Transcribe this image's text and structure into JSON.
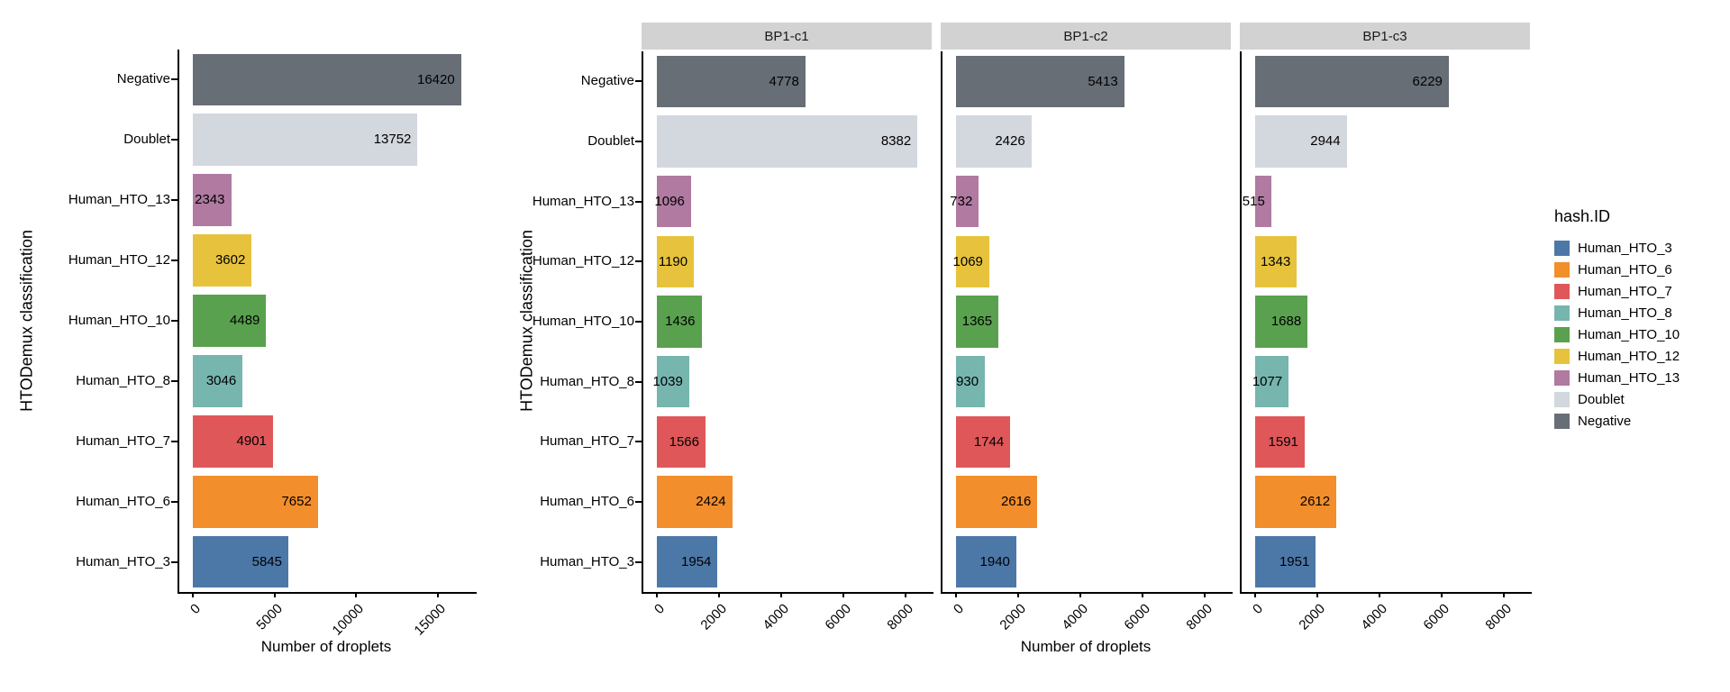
{
  "chart_data": [
    {
      "type": "bar",
      "orientation": "horizontal",
      "title": "",
      "ylabel": "HTODemux classification",
      "xlabel": "Number of droplets",
      "categories": [
        "Negative",
        "Doublet",
        "Human_HTO_13",
        "Human_HTO_12",
        "Human_HTO_10",
        "Human_HTO_8",
        "Human_HTO_7",
        "Human_HTO_6",
        "Human_HTO_3"
      ],
      "values": [
        16420,
        13752,
        2343,
        3602,
        4489,
        3046,
        4901,
        7652,
        5845
      ],
      "xticks": [
        0,
        5000,
        10000,
        15000
      ],
      "xlim": [
        0,
        17000
      ],
      "bar_value_labels": true,
      "grid": false
    },
    {
      "type": "bar",
      "orientation": "horizontal",
      "title": "",
      "ylabel": "HTODemux classification",
      "xlabel": "Number of droplets",
      "categories": [
        "Negative",
        "Doublet",
        "Human_HTO_13",
        "Human_HTO_12",
        "Human_HTO_10",
        "Human_HTO_8",
        "Human_HTO_7",
        "Human_HTO_6",
        "Human_HTO_3"
      ],
      "series": [
        {
          "name": "BP1-c1",
          "values": [
            4778,
            8382,
            1096,
            1190,
            1436,
            1039,
            1566,
            2424,
            1954
          ]
        },
        {
          "name": "BP1-c2",
          "values": [
            5413,
            2426,
            732,
            1069,
            1365,
            930,
            1744,
            2616,
            1940
          ]
        },
        {
          "name": "BP1-c3",
          "values": [
            6229,
            2944,
            515,
            1343,
            1688,
            1077,
            1591,
            2612,
            1951
          ]
        }
      ],
      "xticks": [
        0,
        2000,
        4000,
        6000,
        8000
      ],
      "xlim": [
        0,
        8800
      ],
      "bar_value_labels": true,
      "grid": false
    }
  ],
  "category_colors": {
    "Negative": "#686E76",
    "Doublet": "#D3D7DE",
    "Human_HTO_13": "#B07AA1",
    "Human_HTO_12": "#E7C33D",
    "Human_HTO_10": "#59A14F",
    "Human_HTO_8": "#77B5AF",
    "Human_HTO_7": "#E05759",
    "Human_HTO_6": "#F28E2B",
    "Human_HTO_3": "#4C78A8"
  },
  "legend": {
    "title": "hash.ID",
    "entries": [
      {
        "label": "Human_HTO_3",
        "color": "#4C78A8"
      },
      {
        "label": "Human_HTO_6",
        "color": "#F28E2B"
      },
      {
        "label": "Human_HTO_7",
        "color": "#E05759"
      },
      {
        "label": "Human_HTO_8",
        "color": "#77B5AF"
      },
      {
        "label": "Human_HTO_10",
        "color": "#59A14F"
      },
      {
        "label": "Human_HTO_12",
        "color": "#E7C33D"
      },
      {
        "label": "Human_HTO_13",
        "color": "#B07AA1"
      },
      {
        "label": "Doublet",
        "color": "#D3D7DE"
      },
      {
        "label": "Negative",
        "color": "#686E76"
      }
    ]
  },
  "strip_color": "#D2D2D2",
  "axis_color": "#000000"
}
